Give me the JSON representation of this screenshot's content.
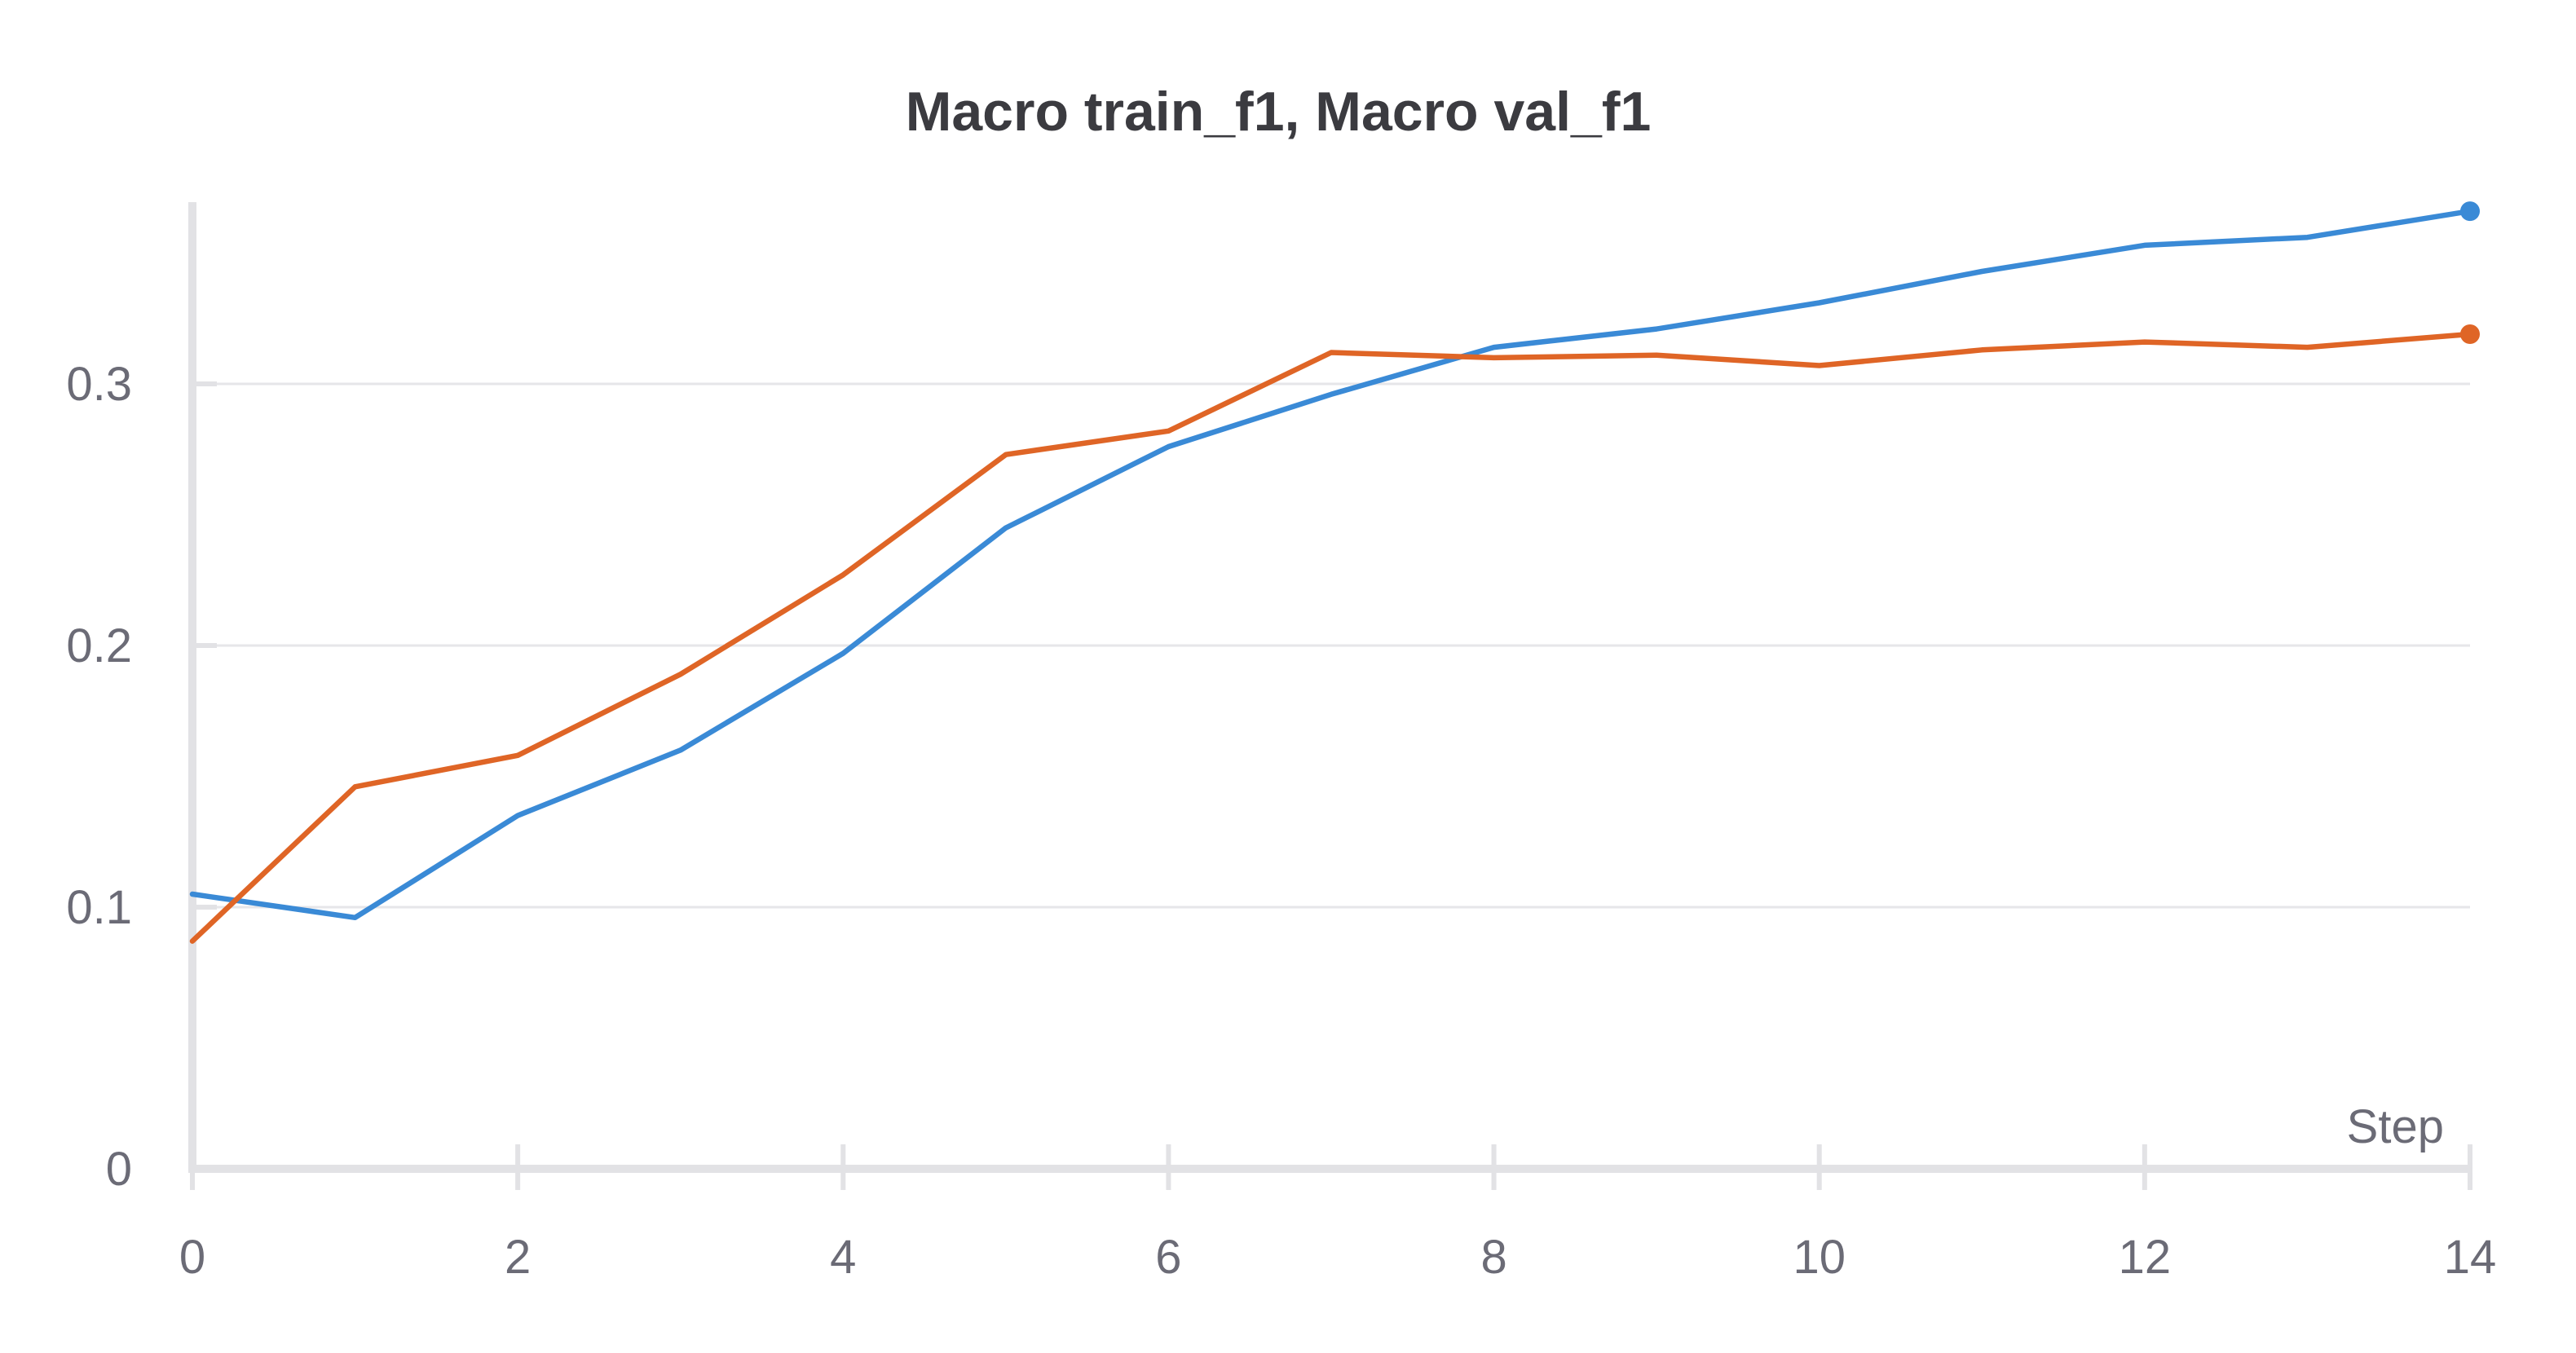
{
  "chart_data": {
    "type": "line",
    "title": "Macro train_f1, Macro val_f1",
    "xlabel": "Step",
    "ylabel": "",
    "xlim": [
      0,
      14
    ],
    "ylim": [
      0,
      0.37
    ],
    "x_ticks": [
      0,
      2,
      4,
      6,
      8,
      10,
      12,
      14
    ],
    "x_tick_labels": [
      "0",
      "2",
      "4",
      "6",
      "8",
      "10",
      "12",
      "14"
    ],
    "y_ticks": [
      0,
      0.1,
      0.2,
      0.3
    ],
    "y_tick_labels": [
      "0",
      "0.1",
      "0.2",
      "0.3"
    ],
    "grid": true,
    "legend": "none",
    "series": [
      {
        "color": "#3a8ad6",
        "x": [
          0,
          1,
          2,
          3,
          4,
          5,
          6,
          7,
          8,
          9,
          10,
          11,
          12,
          13,
          14
        ],
        "values": [
          0.105,
          0.096,
          0.135,
          0.16,
          0.197,
          0.245,
          0.276,
          0.296,
          0.314,
          0.321,
          0.331,
          0.343,
          0.353,
          0.356,
          0.366
        ]
      },
      {
        "color": "#df6526",
        "x": [
          0,
          1,
          2,
          3,
          4,
          5,
          6,
          7,
          8,
          9,
          10,
          11,
          12,
          13,
          14
        ],
        "values": [
          0.087,
          0.146,
          0.158,
          0.189,
          0.227,
          0.273,
          0.282,
          0.312,
          0.31,
          0.311,
          0.307,
          0.313,
          0.316,
          0.314,
          0.319
        ]
      }
    ]
  }
}
